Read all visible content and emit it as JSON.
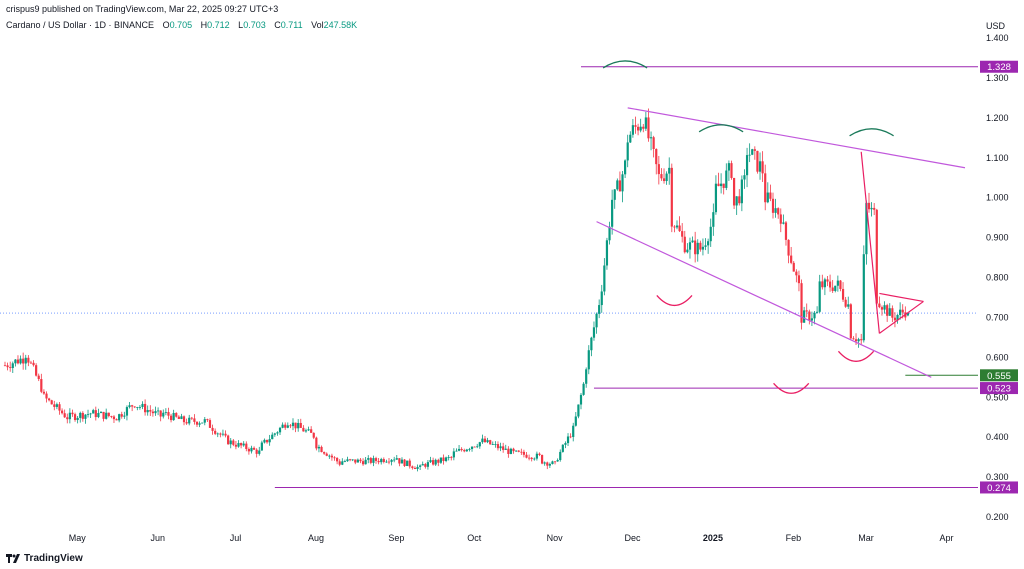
{
  "header": {
    "published": "crispus9 published on TradingView.com, Mar 22, 2025 09:27 UTC+3",
    "symbol": "Cardano / US Dollar · 1D · BINANCE",
    "ohlc": [
      {
        "label": "O",
        "value": "0.705"
      },
      {
        "label": "H",
        "value": "0.712"
      },
      {
        "label": "L",
        "value": "0.703"
      },
      {
        "label": "C",
        "value": "0.711"
      }
    ],
    "volume_label": "Vol",
    "volume_value": "247.58K",
    "currency": "USD"
  },
  "footer": {
    "brand": "TradingView"
  },
  "colors": {
    "up": "#089981",
    "down": "#f23645",
    "purple": "#9c27b0",
    "green_badge": "#2e7d32",
    "annotation_green": "#1b7a5a",
    "annotation_red": "#e91e63"
  },
  "chart_data": {
    "type": "candlestick",
    "ylim": [
      0.2,
      1.4
    ],
    "y_ticks": [
      "1.400",
      "1.300",
      "1.200",
      "1.100",
      "1.000",
      "0.900",
      "0.800",
      "0.700",
      "0.600",
      "0.500",
      "0.400",
      "0.300",
      "0.200"
    ],
    "x_labels": [
      "May",
      "Jun",
      "Jul",
      "Aug",
      "Sep",
      "Oct",
      "Nov",
      "Dec",
      "2025",
      "Feb",
      "Mar",
      "Apr"
    ],
    "x_start_date": "2024-04-07",
    "x_end_date": "2025-04-12",
    "current_price": 0.711,
    "levels": [
      {
        "label": "1.328",
        "value": 1.328,
        "color": "#9c27b0",
        "from": "2024-11-15"
      },
      {
        "label": "0.555",
        "value": 0.555,
        "color": "#2e7d32",
        "from": "2025-03-20"
      },
      {
        "label": "0.523",
        "value": 0.523,
        "color": "#9c27b0",
        "from": "2024-11-20"
      },
      {
        "label": "0.274",
        "value": 0.274,
        "color": "#9c27b0",
        "from": "2024-07-20"
      }
    ],
    "trendlines": [
      {
        "name": "upper-wedge",
        "from": [
          "2024-12-03",
          1.225
        ],
        "to": [
          "2025-04-12",
          1.075
        ],
        "color": "#c158dc"
      },
      {
        "name": "lower-wedge",
        "from": [
          "2024-11-21",
          0.94
        ],
        "to": [
          "2025-03-30",
          0.55
        ],
        "color": "#c158dc"
      },
      {
        "name": "pennant-top",
        "from": [
          "2025-03-10",
          0.76
        ],
        "to": [
          "2025-03-27",
          0.74
        ],
        "color": "#e91e63"
      },
      {
        "name": "pennant-bottom",
        "from": [
          "2025-03-10",
          0.66
        ],
        "to": [
          "2025-03-27",
          0.74
        ],
        "color": "#e91e63"
      },
      {
        "name": "drop-line",
        "from": [
          "2025-03-03",
          1.115
        ],
        "to": [
          "2025-03-10",
          0.66
        ],
        "color": "#e91e63"
      }
    ],
    "arcs": [
      {
        "at": "2024-12-02",
        "value": 1.34,
        "shape": "cap",
        "color": "#1b7a5a"
      },
      {
        "at": "2025-01-08",
        "value": 1.18,
        "shape": "cap",
        "color": "#1b7a5a"
      },
      {
        "at": "2025-03-07",
        "value": 1.17,
        "shape": "cap",
        "color": "#1b7a5a"
      },
      {
        "at": "2024-12-21",
        "value": 0.74,
        "shape": "cup",
        "color": "#e91e63"
      },
      {
        "at": "2025-02-04",
        "value": 0.52,
        "shape": "cup",
        "color": "#e91e63"
      },
      {
        "at": "2025-03-01",
        "value": 0.6,
        "shape": "cup",
        "color": "#e91e63"
      }
    ],
    "ohlc": [
      [
        "2024-04-07",
        0.58,
        0.6
      ],
      [
        "2024-04-15",
        0.61,
        0.51
      ],
      [
        "2024-04-22",
        0.5,
        0.45
      ],
      [
        "2024-05-01",
        0.45,
        0.46
      ],
      [
        "2024-05-10",
        0.46,
        0.45
      ],
      [
        "2024-05-20",
        0.45,
        0.49
      ],
      [
        "2024-05-28",
        0.48,
        0.45
      ],
      [
        "2024-06-07",
        0.46,
        0.44
      ],
      [
        "2024-06-15",
        0.44,
        0.44
      ],
      [
        "2024-06-23",
        0.44,
        0.39
      ],
      [
        "2024-07-02",
        0.39,
        0.38
      ],
      [
        "2024-07-06",
        0.38,
        0.36
      ],
      [
        "2024-07-15",
        0.38,
        0.44
      ],
      [
        "2024-07-25",
        0.44,
        0.4
      ],
      [
        "2024-08-05",
        0.38,
        0.33
      ],
      [
        "2024-08-15",
        0.34,
        0.34
      ],
      [
        "2024-08-26",
        0.34,
        0.35
      ],
      [
        "2024-09-06",
        0.34,
        0.32
      ],
      [
        "2024-09-15",
        0.33,
        0.35
      ],
      [
        "2024-09-27",
        0.36,
        0.39
      ],
      [
        "2024-10-08",
        0.39,
        0.36
      ],
      [
        "2024-10-20",
        0.36,
        0.35
      ],
      [
        "2024-10-31",
        0.34,
        0.33
      ],
      [
        "2024-11-06",
        0.35,
        0.42
      ],
      [
        "2024-11-12",
        0.42,
        0.56
      ],
      [
        "2024-11-17",
        0.58,
        0.77
      ],
      [
        "2024-11-23",
        0.78,
        1.05
      ],
      [
        "2024-11-28",
        1.0,
        1.1
      ],
      [
        "2024-12-03",
        1.15,
        1.2
      ],
      [
        "2024-12-09",
        1.2,
        1.05
      ],
      [
        "2024-12-15",
        1.05,
        1.08
      ],
      [
        "2024-12-20",
        0.95,
        0.87
      ],
      [
        "2024-12-26",
        0.88,
        0.87
      ],
      [
        "2025-01-01",
        0.88,
        0.96
      ],
      [
        "2025-01-06",
        1.02,
        1.08
      ],
      [
        "2025-01-13",
        0.98,
        1.05
      ],
      [
        "2025-01-18",
        1.12,
        1.06
      ],
      [
        "2025-01-25",
        1.0,
        0.95
      ],
      [
        "2025-02-01",
        0.92,
        0.75
      ],
      [
        "2025-02-08",
        0.7,
        0.71
      ],
      [
        "2025-02-15",
        0.78,
        0.78
      ],
      [
        "2025-02-22",
        0.78,
        0.72
      ],
      [
        "2025-02-27",
        0.66,
        0.64
      ],
      [
        "2025-03-03",
        0.64,
        1.05
      ],
      [
        "2025-03-05",
        0.98,
        0.95
      ],
      [
        "2025-03-09",
        0.75,
        0.7
      ],
      [
        "2025-03-15",
        0.7,
        0.72
      ],
      [
        "2025-03-21",
        0.705,
        0.711
      ]
    ]
  }
}
